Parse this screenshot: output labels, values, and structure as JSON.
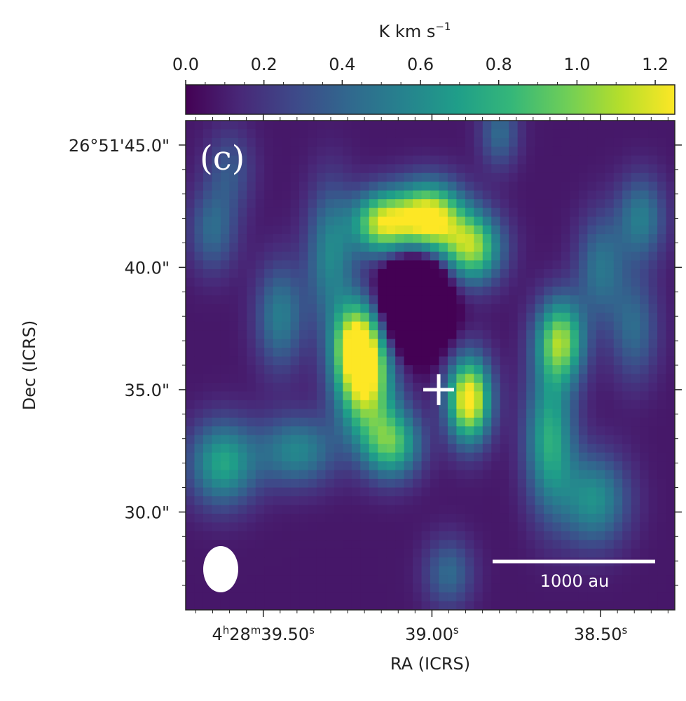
{
  "chart_data": {
    "type": "heatmap",
    "panel_label": "(c)",
    "colorbar": {
      "label_main": "K km s",
      "label_exp": "−1",
      "range": [
        0.0,
        1.25
      ],
      "ticks": [
        "0.0",
        "0.2",
        "0.4",
        "0.6",
        "0.8",
        "1.0",
        "1.2"
      ],
      "tick_values": [
        0.0,
        0.2,
        0.4,
        0.6,
        0.8,
        1.0,
        1.2
      ],
      "colormap": [
        "#440154",
        "#482878",
        "#3e4989",
        "#31688e",
        "#26828e",
        "#1f9e89",
        "#35b779",
        "#6ece58",
        "#b5de2b",
        "#fde725"
      ]
    },
    "xaxis": {
      "label": "RA (ICRS)",
      "range_s": [
        39.73,
        38.28
      ],
      "ticks": [
        {
          "value_s": 39.5,
          "pre": "4",
          "h": "h",
          "mid": "28",
          "m": "m",
          "rest": "39.50",
          "s": "s"
        },
        {
          "value_s": 39.0,
          "pre": "",
          "h": "",
          "mid": "",
          "m": "",
          "rest": "39.00",
          "s": "s"
        },
        {
          "value_s": 38.5,
          "pre": "",
          "h": "",
          "mid": "",
          "m": "",
          "rest": "38.50",
          "s": "s"
        }
      ]
    },
    "yaxis": {
      "label": "Dec (ICRS)",
      "range_arcsec": [
        26.0,
        46.0
      ],
      "ticks": [
        {
          "value": 45.0,
          "text": "26°51'45.0\""
        },
        {
          "value": 40.0,
          "text": "40.0\""
        },
        {
          "value": 35.0,
          "text": "35.0\""
        },
        {
          "value": 30.0,
          "text": "30.0\""
        }
      ]
    },
    "emission_features": [
      {
        "ra_s": 38.89,
        "dec": 34.6,
        "intensity": 1.25,
        "sx": 0.045,
        "sy": 1.2
      },
      {
        "ra_s": 39.2,
        "dec": 35.3,
        "intensity": 1.05,
        "sx": 0.06,
        "sy": 1.5
      },
      {
        "ra_s": 39.22,
        "dec": 37.0,
        "intensity": 0.95,
        "sx": 0.05,
        "sy": 1.2
      },
      {
        "ra_s": 39.01,
        "dec": 42.0,
        "intensity": 1.25,
        "sx": 0.07,
        "sy": 1.0
      },
      {
        "ra_s": 39.15,
        "dec": 41.8,
        "intensity": 1.0,
        "sx": 0.06,
        "sy": 0.9
      },
      {
        "ra_s": 38.88,
        "dec": 40.8,
        "intensity": 0.95,
        "sx": 0.06,
        "sy": 1.0
      },
      {
        "ra_s": 38.62,
        "dec": 37.0,
        "intensity": 0.95,
        "sx": 0.05,
        "sy": 1.2
      },
      {
        "ra_s": 39.12,
        "dec": 32.8,
        "intensity": 0.8,
        "sx": 0.06,
        "sy": 1.0
      },
      {
        "ra_s": 39.62,
        "dec": 32.0,
        "intensity": 0.65,
        "sx": 0.07,
        "sy": 1.2
      },
      {
        "ra_s": 39.4,
        "dec": 32.5,
        "intensity": 0.5,
        "sx": 0.08,
        "sy": 1.0
      },
      {
        "ra_s": 38.65,
        "dec": 33.0,
        "intensity": 0.7,
        "sx": 0.05,
        "sy": 2.0
      },
      {
        "ra_s": 38.52,
        "dec": 30.5,
        "intensity": 0.55,
        "sx": 0.07,
        "sy": 1.3
      },
      {
        "ra_s": 39.3,
        "dec": 40.5,
        "intensity": 0.5,
        "sx": 0.05,
        "sy": 2.0
      },
      {
        "ra_s": 39.45,
        "dec": 38.0,
        "intensity": 0.45,
        "sx": 0.05,
        "sy": 1.5
      },
      {
        "ra_s": 38.38,
        "dec": 42.0,
        "intensity": 0.45,
        "sx": 0.05,
        "sy": 1.2
      },
      {
        "ra_s": 38.5,
        "dec": 40.0,
        "intensity": 0.4,
        "sx": 0.05,
        "sy": 1.5
      },
      {
        "ra_s": 38.95,
        "dec": 27.5,
        "intensity": 0.35,
        "sx": 0.05,
        "sy": 1.0
      },
      {
        "ra_s": 38.8,
        "dec": 45.5,
        "intensity": 0.35,
        "sx": 0.04,
        "sy": 1.0
      },
      {
        "ra_s": 39.65,
        "dec": 41.5,
        "intensity": 0.35,
        "sx": 0.05,
        "sy": 1.2
      },
      {
        "ra_s": 38.4,
        "dec": 37.5,
        "intensity": 0.35,
        "sx": 0.05,
        "sy": 1.5
      },
      {
        "ra_s": 39.6,
        "dec": 44.0,
        "intensity": 0.25,
        "sx": 0.05,
        "sy": 1.2
      },
      {
        "ra_s": 39.05,
        "dec": 38.6,
        "intensity": -1.4,
        "sx": 0.06,
        "sy": 1.2
      }
    ],
    "marker": {
      "symbol": "+",
      "ra_s": 38.98,
      "dec": 35.0,
      "color": "#ffffff"
    },
    "beam": {
      "color": "#ffffff"
    },
    "scalebar": {
      "label": "1000 au",
      "color": "#ffffff"
    }
  }
}
